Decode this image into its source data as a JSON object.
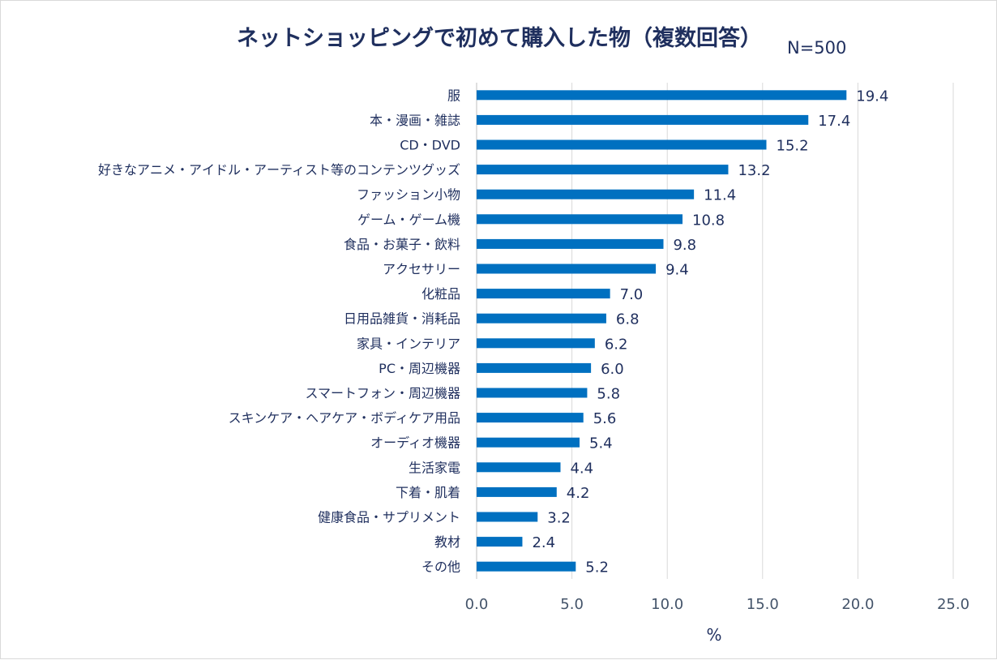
{
  "chart_data": {
    "type": "bar",
    "orientation": "horizontal",
    "title": "ネットショッピングで初めて購入した物（複数回答）",
    "subtitle": "N=500",
    "xlabel": "%",
    "ylabel": "",
    "xlim": [
      0,
      25
    ],
    "xticks": [
      "0.0",
      "5.0",
      "10.0",
      "15.0",
      "20.0",
      "25.0"
    ],
    "grid": true,
    "bar_color": "#0070c0",
    "categories": [
      "服",
      "本・漫画・雑誌",
      "CD・DVD",
      "好きなアニメ・アイドル・アーティスト等のコンテンツグッズ",
      "ファッション小物",
      "ゲーム・ゲーム機",
      "食品・お菓子・飲料",
      "アクセサリー",
      "化粧品",
      "日用品雑貨・消耗品",
      "家具・インテリア",
      "PC・周辺機器",
      "スマートフォン・周辺機器",
      "スキンケア・ヘアケア・ボディケア用品",
      "オーディオ機器",
      "生活家電",
      "下着・肌着",
      "健康食品・サプリメント",
      "教材",
      "その他"
    ],
    "values": [
      19.4,
      17.4,
      15.2,
      13.2,
      11.4,
      10.8,
      9.8,
      9.4,
      7.0,
      6.8,
      6.2,
      6.0,
      5.8,
      5.6,
      5.4,
      4.4,
      4.2,
      3.2,
      2.4,
      5.2
    ],
    "value_labels": [
      "19.4",
      "17.4",
      "15.2",
      "13.2",
      "11.4",
      "10.8",
      "9.8",
      "9.4",
      "7.0",
      "6.8",
      "6.2",
      "6.0",
      "5.8",
      "5.6",
      "5.4",
      "4.4",
      "4.2",
      "3.2",
      "2.4",
      "5.2"
    ]
  }
}
